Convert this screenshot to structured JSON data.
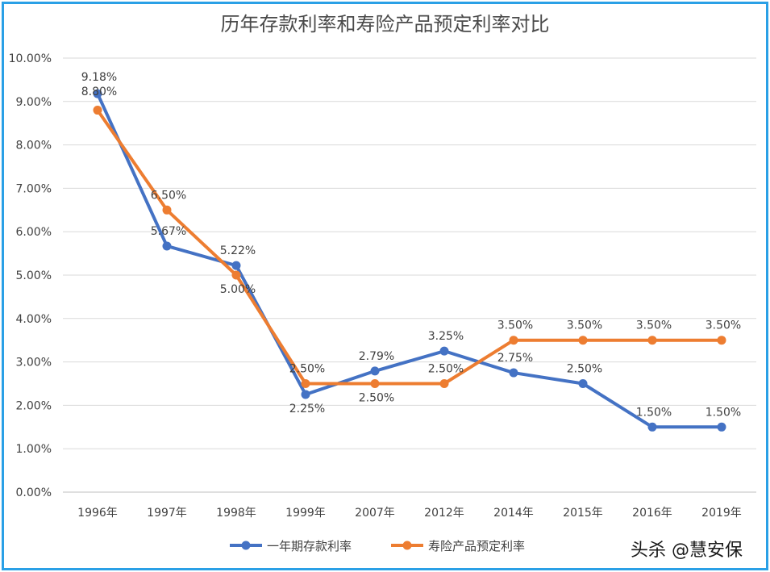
{
  "chart_data": {
    "type": "line",
    "title": "历年存款利率和寿险产品预定利率对比",
    "categories": [
      "1996年",
      "1997年",
      "1998年",
      "1999年",
      "2007年",
      "2012年",
      "2014年",
      "2015年",
      "2016年",
      "2019年"
    ],
    "series": [
      {
        "name": "一年期存款利率",
        "color": "#4472c4",
        "values": [
          9.18,
          5.67,
          5.22,
          2.25,
          2.79,
          3.25,
          2.75,
          2.5,
          1.5,
          1.5
        ],
        "labels": [
          "9.18%",
          "5.67%",
          "5.22%",
          "2.25%",
          "2.79%",
          "3.25%",
          "2.75%",
          "2.50%",
          "1.50%",
          "1.50%"
        ]
      },
      {
        "name": "寿险产品预定利率",
        "color": "#ed7d31",
        "values": [
          8.8,
          6.5,
          5.0,
          2.5,
          2.5,
          2.5,
          3.5,
          3.5,
          3.5,
          3.5
        ],
        "labels": [
          "8.80%",
          "6.50%",
          "5.00%",
          "2.50%",
          "2.50%",
          "2.50%",
          "3.50%",
          "3.50%",
          "3.50%",
          "3.50%"
        ]
      }
    ],
    "ylim": [
      0,
      10
    ],
    "yticks": [
      "0.00%",
      "1.00%",
      "2.00%",
      "3.00%",
      "4.00%",
      "5.00%",
      "6.00%",
      "7.00%",
      "8.00%",
      "9.00%",
      "10.00%"
    ],
    "xlabel": "",
    "ylabel": "",
    "grid": true,
    "legend": "bottom"
  },
  "watermark": "头杀 @慧安保"
}
